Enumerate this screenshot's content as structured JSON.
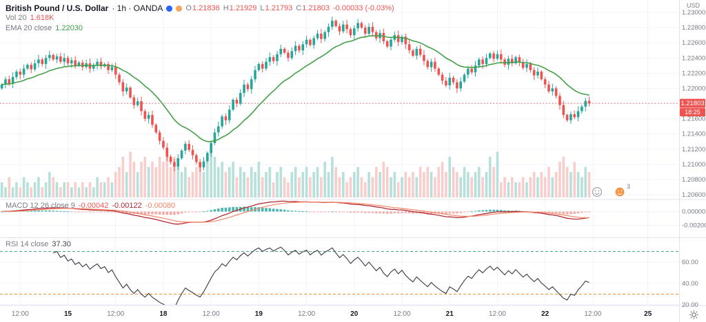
{
  "legend": {
    "title": "British Pound / U.S. Dollar",
    "subtitle": "· 1h · OANDA",
    "o_label": "O",
    "o_value": "1.21836",
    "h_label": "H",
    "h_value": "1.21929",
    "l_label": "L",
    "l_value": "1.21793",
    "c_label": "C",
    "c_value": "1.21803",
    "change": "-0.00033 (-0.03%)",
    "vol_label": "Vol 20",
    "vol_value": "1.618K",
    "ema_label": "EMA 20 close",
    "ema_value": "1.22030"
  },
  "macd_legend": {
    "label": "MACD 12 26 close 9",
    "v1": "-0.00042",
    "v2": "-0.00122",
    "v3": "-0.00080"
  },
  "rsi_legend": {
    "label": "RSI 14 close",
    "value": "37.30"
  },
  "price_axis": {
    "currency": "USD",
    "ticks": [
      "1.23000",
      "1.22800",
      "1.22600",
      "1.22400",
      "1.22200",
      "1.22000",
      "1.21800",
      "1.21600",
      "1.21400",
      "1.21200",
      "1.21000",
      "1.20800",
      "1.20600"
    ],
    "last_price": "1.21803",
    "countdown": "18:25"
  },
  "macd_axis": [
    "0.00000",
    "-0.00200"
  ],
  "rsi_axis": [
    "60.00",
    "40.00",
    "20.00"
  ],
  "buttons": {
    "ideas_count": "3"
  },
  "colors": {
    "up": "#26a69a",
    "down": "#ef5350",
    "vol_up": "#b7e0db",
    "vol_down": "#f8cecd",
    "ema": "#43a047",
    "macd_line": "#b1282f",
    "macd_signal": "#f58466",
    "hist_pos": "#4db6ac",
    "hist_neg": "#f5a9a7",
    "rsi_line": "#43464f",
    "rsi_upper": "#4ca97e",
    "rsi_lower": "#ef8f3c",
    "last_price": "#ef5350",
    "grid": "#f0f3fa",
    "axis_text": "#787b86",
    "text": "#131722",
    "separator": "#e0e3eb"
  },
  "chart_data": {
    "type": "candlestick",
    "title": "British Pound / U.S. Dollar · 1h · OANDA",
    "ylim": [
      1.206,
      1.23
    ],
    "x_slots": 185,
    "first_open": 1.22,
    "last_price": 1.21803,
    "ema_period": 20,
    "macd": {
      "fast": 12,
      "slow": 26,
      "signal": 9
    },
    "rsi_period": 14,
    "rsi_guides": [
      70,
      30
    ],
    "closes": [
      1.2205,
      1.2212,
      1.2206,
      1.2215,
      1.2222,
      1.2218,
      1.2226,
      1.2231,
      1.2225,
      1.2233,
      1.2238,
      1.2232,
      1.224,
      1.2244,
      1.2238,
      1.2242,
      1.2235,
      1.224,
      1.2233,
      1.2237,
      1.223,
      1.2234,
      1.2228,
      1.2233,
      1.2226,
      1.2231,
      1.2235,
      1.2229,
      1.2232,
      1.2224,
      1.2228,
      1.2218,
      1.2208,
      1.2196,
      1.2201,
      1.2188,
      1.2178,
      1.2183,
      1.217,
      1.216,
      1.2165,
      1.2152,
      1.2142,
      1.2131,
      1.2122,
      1.211,
      1.2103,
      1.2097,
      1.2108,
      1.2118,
      1.2127,
      1.2119,
      1.2112,
      1.2103,
      1.2096,
      1.2104,
      1.2115,
      1.2128,
      1.2142,
      1.215,
      1.2163,
      1.2158,
      1.2172,
      1.2185,
      1.218,
      1.2194,
      1.2205,
      1.2199,
      1.2212,
      1.2224,
      1.2232,
      1.2226,
      1.2235,
      1.2241,
      1.2236,
      1.2245,
      1.2252,
      1.2247,
      1.224,
      1.2249,
      1.2256,
      1.225,
      1.2258,
      1.2264,
      1.2257,
      1.2266,
      1.2272,
      1.2265,
      1.2274,
      1.2281,
      1.2289,
      1.2282,
      1.2275,
      1.2284,
      1.2278,
      1.227,
      1.2279,
      1.2286,
      1.228,
      1.2272,
      1.2281,
      1.2274,
      1.2266,
      1.2273,
      1.2262,
      1.2255,
      1.2264,
      1.227,
      1.2261,
      1.2268,
      1.2258,
      1.225,
      1.2243,
      1.2252,
      1.2244,
      1.2236,
      1.2228,
      1.2235,
      1.2226,
      1.2218,
      1.221,
      1.2204,
      1.2214,
      1.2208,
      1.22,
      1.2209,
      1.2218,
      1.2226,
      1.2221,
      1.223,
      1.2238,
      1.2232,
      1.224,
      1.2246,
      1.2239,
      1.2245,
      1.2238,
      1.2231,
      1.2239,
      1.2233,
      1.2241,
      1.2234,
      1.2227,
      1.2232,
      1.2224,
      1.2217,
      1.2222,
      1.2212,
      1.2205,
      1.2196,
      1.22,
      1.219,
      1.2178,
      1.2165,
      1.2158,
      1.2166,
      1.2162,
      1.217,
      1.2176,
      1.21836,
      1.21803
    ],
    "volumes": [
      3,
      2,
      4,
      2,
      3,
      2,
      4,
      3,
      2,
      3,
      4,
      2,
      3,
      5,
      4,
      3,
      2,
      3,
      3,
      2,
      3,
      2,
      3,
      2,
      3,
      2,
      4,
      3,
      3,
      4,
      3,
      5,
      6,
      8,
      5,
      9,
      7,
      5,
      7,
      8,
      6,
      7,
      6,
      8,
      7,
      9,
      6,
      8,
      6,
      5,
      6,
      4,
      5,
      6,
      7,
      5,
      7,
      9,
      8,
      6,
      7,
      5,
      6,
      7,
      4,
      6,
      5,
      4,
      6,
      5,
      7,
      4,
      5,
      6,
      3,
      5,
      6,
      4,
      3,
      5,
      6,
      4,
      5,
      6,
      4,
      5,
      6,
      4,
      7,
      5,
      8,
      6,
      4,
      5,
      3,
      4,
      5,
      6,
      4,
      3,
      5,
      4,
      6,
      5,
      7,
      6,
      4,
      5,
      3,
      4,
      5,
      4,
      5,
      4,
      6,
      5,
      6,
      5,
      4,
      6,
      7,
      5,
      8,
      6,
      5,
      4,
      6,
      5,
      4,
      5,
      6,
      4,
      5,
      8,
      6,
      9,
      3,
      4,
      3,
      4,
      3,
      3,
      4,
      3,
      4,
      5,
      4,
      5,
      4,
      6,
      4,
      5,
      7,
      8,
      6,
      5,
      7,
      5,
      4,
      6,
      5
    ],
    "time_ticks": [
      [
        5,
        "12:00",
        0
      ],
      [
        18,
        "15",
        1
      ],
      [
        31,
        "12:00",
        0
      ],
      [
        44,
        "18",
        1
      ],
      [
        57,
        "12:00",
        0
      ],
      [
        70,
        "19",
        1
      ],
      [
        83,
        "12:00",
        0
      ],
      [
        96,
        "20",
        1
      ],
      [
        109,
        "12:00",
        0
      ],
      [
        122,
        "21",
        1
      ],
      [
        135,
        "12:00",
        0
      ],
      [
        148,
        "22",
        1
      ],
      [
        161,
        "12:00",
        0
      ],
      [
        176,
        "25",
        1
      ]
    ]
  }
}
